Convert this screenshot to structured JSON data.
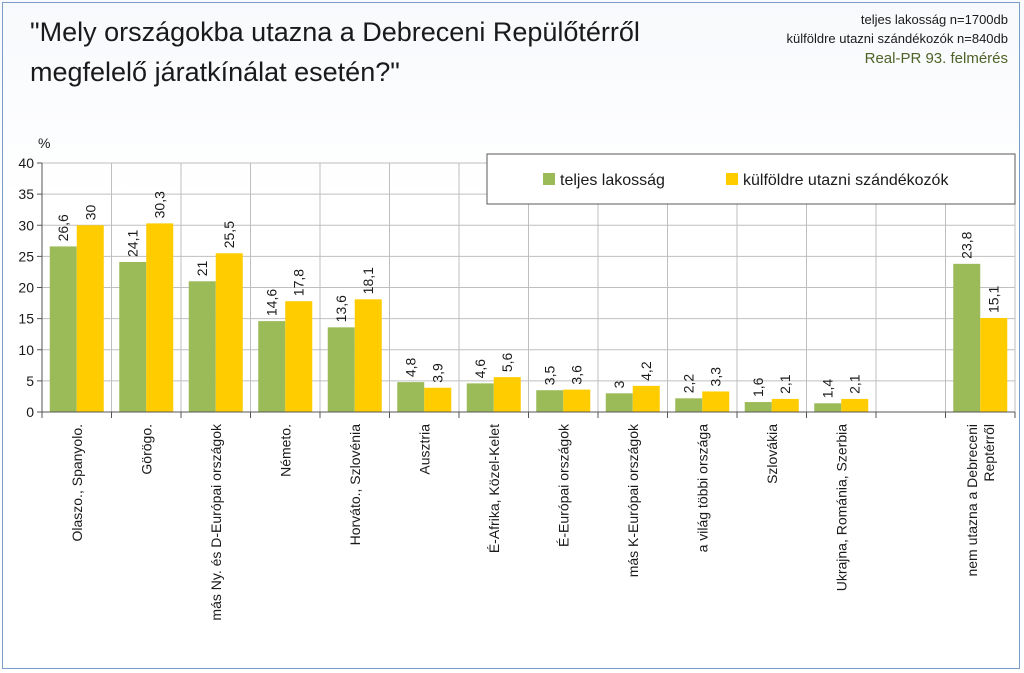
{
  "title": "\"Mely országokba utazna a Debreceni Repülőtérről megfelelő járatkínálat esetén?\"",
  "info": {
    "line1": "teljes lakosság n=1700db",
    "line2": "külföldre utazni szándékozók n=840db",
    "line3": "Real-PR 93. felmérés"
  },
  "colors": {
    "green": "#9bbb59",
    "yellow": "#ffcc00"
  },
  "chart_data": {
    "type": "bar",
    "ylabel": "%",
    "ylim": [
      0,
      40
    ],
    "yticks": [
      0,
      5,
      10,
      15,
      20,
      25,
      30,
      35,
      40
    ],
    "legend_position": "top-right",
    "categories": [
      [
        "Olaszo., Spanyolo."
      ],
      [
        "Görögo."
      ],
      [
        "más Ny. és D-Európai országok"
      ],
      [
        "Németo."
      ],
      [
        "Horváto., Szlovénia"
      ],
      [
        "Ausztria"
      ],
      [
        "É-Afrika, Közel-Kelet"
      ],
      [
        "É-Európai országok"
      ],
      [
        "más K-Európai országok"
      ],
      [
        "a világ többi országa"
      ],
      [
        "Szlovákia"
      ],
      [
        "Ukrajna, Románia, Szerbia"
      ],
      [
        ""
      ],
      [
        "nem utazna a Debreceni",
        "Reptérről"
      ]
    ],
    "series": [
      {
        "name": "teljes lakosság",
        "color": "#9bbb59",
        "values": [
          26.6,
          24.1,
          21,
          14.6,
          13.6,
          4.8,
          4.6,
          3.5,
          3,
          2.2,
          1.6,
          1.4,
          null,
          23.8
        ],
        "labels": [
          "26,6",
          "24,1",
          "21",
          "14,6",
          "13,6",
          "4,8",
          "4,6",
          "3,5",
          "3",
          "2,2",
          "1,6",
          "1,4",
          "",
          "23,8"
        ]
      },
      {
        "name": "külföldre utazni szándékozók",
        "color": "#ffcc00",
        "values": [
          30,
          30.3,
          25.5,
          17.8,
          18.1,
          3.9,
          5.6,
          3.6,
          4.2,
          3.3,
          2.1,
          2.1,
          null,
          15.1
        ],
        "labels": [
          "30",
          "30,3",
          "25,5",
          "17,8",
          "18,1",
          "3,9",
          "5,6",
          "3,6",
          "4,2",
          "3,3",
          "2,1",
          "2,1",
          "",
          "15,1"
        ]
      }
    ]
  }
}
